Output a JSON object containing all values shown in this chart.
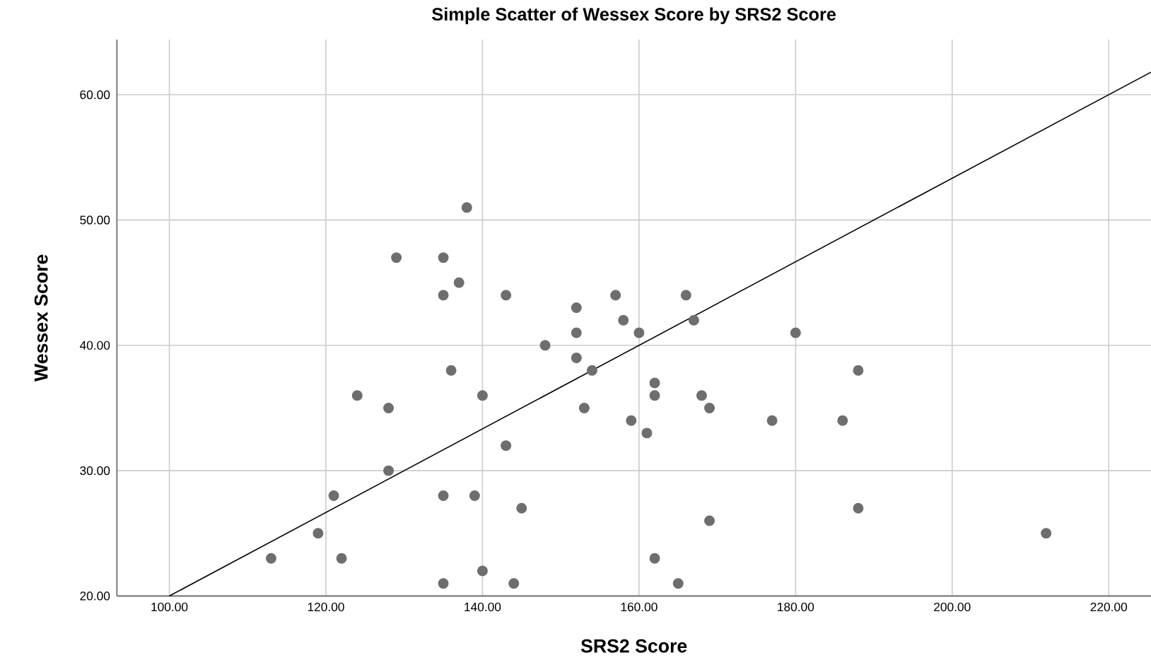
{
  "chart_data": {
    "type": "scatter",
    "title": "Simple Scatter of Wessex Score by SRS2 Score",
    "xlabel": "SRS2 Score",
    "ylabel": "Wessex Score",
    "xlim": [
      93.3,
      225.4
    ],
    "ylim": [
      20,
      64.4
    ],
    "xticks": [
      {
        "value": 100,
        "label": "100.00"
      },
      {
        "value": 120,
        "label": "120.00"
      },
      {
        "value": 140,
        "label": "140.00"
      },
      {
        "value": 160,
        "label": "160.00"
      },
      {
        "value": 180,
        "label": "180.00"
      },
      {
        "value": 200,
        "label": "200.00"
      },
      {
        "value": 220,
        "label": "220.00"
      }
    ],
    "yticks": [
      {
        "value": 20,
        "label": "20.00"
      },
      {
        "value": 30,
        "label": "30.00"
      },
      {
        "value": 40,
        "label": "40.00"
      },
      {
        "value": 50,
        "label": "50.00"
      },
      {
        "value": 60,
        "label": "60.00"
      }
    ],
    "grid": true,
    "series": [
      {
        "color": "#6e6e6e",
        "x": [
          138,
          129,
          135,
          137,
          135,
          143,
          152,
          157,
          158,
          152,
          148,
          152,
          154,
          136,
          124,
          140,
          128,
          153,
          159,
          143,
          128,
          121,
          135,
          139,
          145,
          119,
          113,
          122,
          140,
          135,
          144,
          160,
          166,
          167,
          180,
          162,
          162,
          168,
          169,
          188,
          177,
          186,
          161,
          188,
          169,
          212,
          162,
          165
        ],
        "values": [
          51,
          47,
          47,
          45,
          44,
          44,
          43,
          44,
          42,
          41,
          40,
          39,
          38,
          38,
          36,
          36,
          35,
          35,
          34,
          32,
          30,
          28,
          28,
          28,
          27,
          25,
          23,
          23,
          22,
          21,
          21,
          41,
          44,
          42,
          41,
          37,
          36,
          36,
          35,
          38,
          34,
          34,
          33,
          27,
          26,
          25,
          23,
          21
        ]
      },
      {
        "type": "line",
        "color": "#000000",
        "line_style": "solid",
        "x": [
          100,
          225.4
        ],
        "values": [
          20,
          61.8
        ]
      }
    ]
  }
}
